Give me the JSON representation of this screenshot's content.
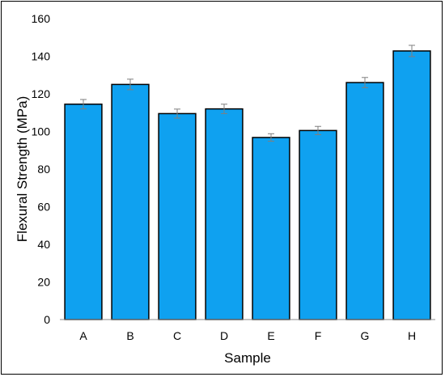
{
  "chart_data": {
    "type": "bar",
    "title": "",
    "xlabel": "Sample",
    "ylabel": "Flexural Strength (MPa)",
    "categories": [
      "A",
      "B",
      "C",
      "D",
      "E",
      "F",
      "G",
      "H"
    ],
    "values": [
      114.5,
      125,
      109.5,
      112,
      96.8,
      100.5,
      126,
      142.8
    ],
    "errors": [
      2.5,
      2.8,
      2.4,
      2.5,
      2.0,
      2.2,
      2.7,
      3.0
    ],
    "ylim": [
      0,
      160
    ],
    "yticks": [
      0,
      20,
      40,
      60,
      80,
      100,
      120,
      140,
      160
    ],
    "grid": false,
    "legend": "none",
    "bar_color": "#0FA1F0",
    "bar_edge_color": "#000000",
    "error_bar_color": "#7F7F7F"
  }
}
